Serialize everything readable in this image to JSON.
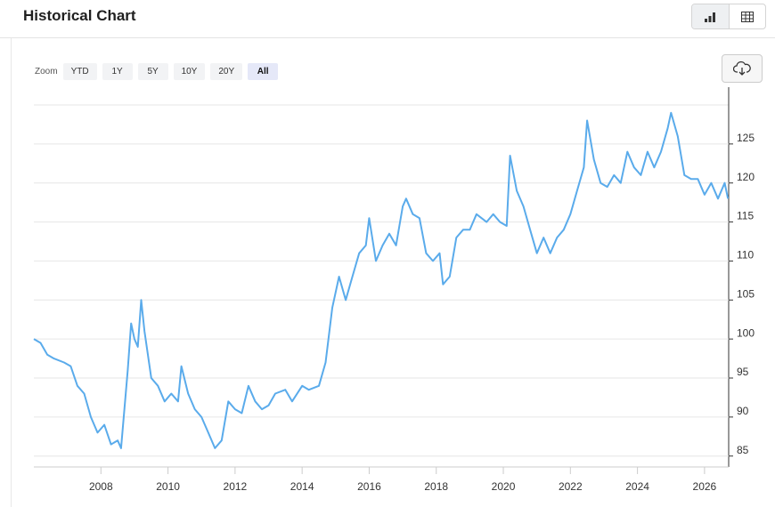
{
  "header": {
    "title": "Historical Chart"
  },
  "toolbar": {
    "zoom_label": "Zoom",
    "buttons": [
      "YTD",
      "1Y",
      "5Y",
      "10Y",
      "20Y",
      "All"
    ],
    "selected": 5
  },
  "chart_data": {
    "type": "line",
    "x": [
      2006.0,
      2006.2,
      2006.4,
      2006.6,
      2006.9,
      2007.1,
      2007.3,
      2007.5,
      2007.7,
      2007.9,
      2008.1,
      2008.3,
      2008.5,
      2008.6,
      2008.8,
      2008.9,
      2009.0,
      2009.1,
      2009.2,
      2009.3,
      2009.5,
      2009.7,
      2009.9,
      2010.1,
      2010.3,
      2010.4,
      2010.6,
      2010.8,
      2011.0,
      2011.2,
      2011.4,
      2011.6,
      2011.8,
      2012.0,
      2012.2,
      2012.4,
      2012.6,
      2012.8,
      2013.0,
      2013.2,
      2013.5,
      2013.7,
      2014.0,
      2014.2,
      2014.5,
      2014.7,
      2014.9,
      2015.1,
      2015.3,
      2015.5,
      2015.7,
      2015.9,
      2016.0,
      2016.2,
      2016.4,
      2016.6,
      2016.8,
      2017.0,
      2017.1,
      2017.3,
      2017.5,
      2017.7,
      2017.9,
      2018.1,
      2018.2,
      2018.4,
      2018.6,
      2018.8,
      2019.0,
      2019.2,
      2019.5,
      2019.7,
      2019.9,
      2020.1,
      2020.2,
      2020.4,
      2020.6,
      2020.8,
      2021.0,
      2021.2,
      2021.4,
      2021.6,
      2021.8,
      2022.0,
      2022.2,
      2022.4,
      2022.5,
      2022.7,
      2022.9,
      2023.1,
      2023.3,
      2023.5,
      2023.7,
      2023.9,
      2024.1,
      2024.3,
      2024.5,
      2024.7,
      2024.9,
      2025.0,
      2025.2,
      2025.4,
      2025.6,
      2025.8,
      2026.0,
      2026.2,
      2026.4,
      2026.6,
      2026.7
    ],
    "series": [
      {
        "color": "#5aabeb",
        "values": [
          100,
          99.5,
          98,
          97.5,
          97,
          96.5,
          94,
          93,
          90,
          88,
          89,
          86.5,
          87,
          86,
          96,
          102,
          100,
          99,
          105,
          101,
          95,
          94,
          92,
          93,
          92,
          96.5,
          93,
          91,
          90,
          88,
          86,
          87,
          92,
          91,
          90.5,
          94,
          92,
          91,
          91.5,
          93,
          93.5,
          92,
          94,
          93.5,
          94,
          97,
          104,
          108,
          105,
          108,
          111,
          112,
          115.5,
          110,
          112,
          113.5,
          112,
          117,
          118,
          116,
          115.5,
          111,
          110,
          111,
          107,
          108,
          113,
          114,
          114,
          116,
          115,
          116,
          115,
          114.5,
          123.5,
          119,
          117,
          114,
          111,
          113,
          111,
          113,
          114,
          116,
          119,
          122,
          128,
          123,
          120,
          119.5,
          121,
          120,
          124,
          122,
          121,
          124,
          122,
          124,
          127,
          129,
          126,
          121,
          120.5,
          120.5,
          118.5,
          120,
          118,
          120,
          118
        ]
      }
    ],
    "xlim": [
      2006.0,
      2026.72
    ],
    "xticks": [
      2008,
      2010,
      2012,
      2014,
      2016,
      2018,
      2020,
      2022,
      2024,
      2026
    ],
    "ylim": [
      83.6,
      130
    ],
    "yticks": [
      85,
      90,
      95,
      100,
      105,
      110,
      115,
      120,
      125
    ],
    "grid": true
  }
}
